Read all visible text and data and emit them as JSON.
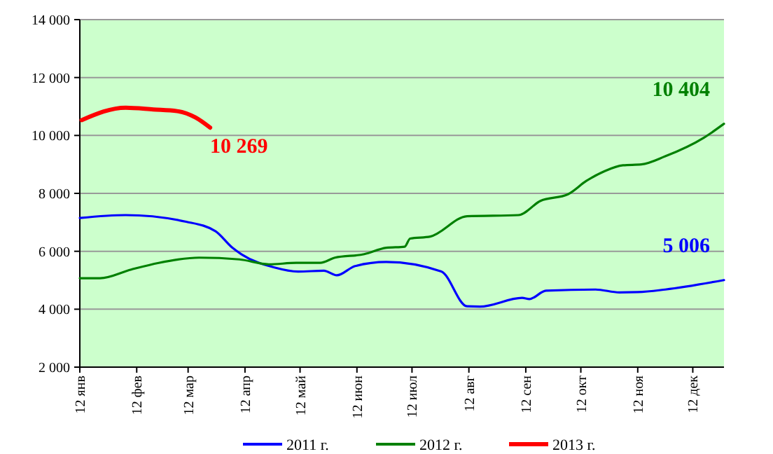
{
  "chart_data": {
    "type": "line",
    "xlim": [
      "--01-12",
      "--12-29"
    ],
    "xticks": [
      {
        "value": "--01-12",
        "label": "12 янв"
      },
      {
        "value": "--02-12",
        "label": "12 фев"
      },
      {
        "value": "--03-12",
        "label": "12 мар"
      },
      {
        "value": "--04-12",
        "label": "12 апр"
      },
      {
        "value": "--05-12",
        "label": "12 май"
      },
      {
        "value": "--06-12",
        "label": "12 июн"
      },
      {
        "value": "--07-12",
        "label": "12 июл"
      },
      {
        "value": "--08-12",
        "label": "12 авг"
      },
      {
        "value": "--09-12",
        "label": "12 сен"
      },
      {
        "value": "--10-12",
        "label": "12 окт"
      },
      {
        "value": "--11-12",
        "label": "12 ноя"
      },
      {
        "value": "--12-12",
        "label": "12 дек"
      }
    ],
    "ylim": [
      2000,
      14000
    ],
    "yticks": [
      {
        "value": 2000,
        "label": "2 000"
      },
      {
        "value": 4000,
        "label": "4 000"
      },
      {
        "value": 6000,
        "label": "6 000"
      },
      {
        "value": 8000,
        "label": "8 000"
      },
      {
        "value": 10000,
        "label": "10 000"
      },
      {
        "value": 12000,
        "label": "12 000"
      },
      {
        "value": 14000,
        "label": "14 000"
      }
    ],
    "grid": "y",
    "legend": "bottom",
    "marker": "none",
    "line_style": "solid",
    "series": [
      {
        "name": "2011 г.",
        "color": "#0000ff",
        "x": [
          "--01-12",
          "--02-06",
          "--03-11",
          "--03-27",
          "--04-05",
          "--04-10",
          "--04-28",
          "--05-11",
          "--05-25",
          "--06-01",
          "--06-11",
          "--06-28",
          "--07-28",
          "--08-11",
          "--08-18",
          "--09-10",
          "--09-14",
          "--09-23",
          "--10-20",
          "--11-02",
          "--11-12",
          "--11-27",
          "--12-29"
        ],
        "values": [
          7150,
          7250,
          7020,
          6690,
          6130,
          5900,
          5440,
          5300,
          5330,
          5170,
          5490,
          5630,
          5300,
          4100,
          4090,
          4390,
          4350,
          4640,
          4680,
          4580,
          4590,
          4680,
          5006
        ],
        "value_labels": [
          null,
          null,
          null,
          null,
          null,
          null,
          null,
          null,
          null,
          null,
          null,
          null,
          null,
          null,
          null,
          null,
          null,
          null,
          null,
          null,
          null,
          null,
          "5 006"
        ]
      },
      {
        "name": "2012 г.",
        "color": "#008000",
        "x": [
          "--01-12",
          "--01-23",
          "--02-09",
          "--02-24",
          "--03-18",
          "--04-09",
          "--04-25",
          "--05-10",
          "--05-23",
          "--05-31",
          "--06-16",
          "--06-28",
          "--07-08",
          "--07-11",
          "--07-22",
          "--08-11",
          "--09-08",
          "--09-20",
          "--10-05",
          "--10-15",
          "--10-25",
          "--11-04",
          "--11-14",
          "--11-27",
          "--12-18",
          "--12-29"
        ],
        "values": [
          5070,
          5070,
          5370,
          5600,
          5780,
          5720,
          5550,
          5600,
          5600,
          5780,
          5900,
          6120,
          6160,
          6440,
          6510,
          7210,
          7250,
          7740,
          7970,
          8430,
          8770,
          8970,
          9000,
          9280,
          9920,
          10404
        ],
        "value_labels": [
          null,
          null,
          null,
          null,
          null,
          null,
          null,
          null,
          null,
          null,
          null,
          null,
          null,
          null,
          null,
          null,
          null,
          null,
          null,
          null,
          null,
          null,
          null,
          null,
          null,
          "10 404"
        ]
      },
      {
        "name": "2013 г.",
        "color": "#ff0000",
        "x": [
          "--01-13",
          "--02-06",
          "--02-21",
          "--03-06",
          "--03-16",
          "--03-24"
        ],
        "values": [
          10530,
          10960,
          10900,
          10840,
          10620,
          10269
        ],
        "value_labels": [
          null,
          null,
          null,
          null,
          null,
          "10 269"
        ]
      }
    ]
  }
}
